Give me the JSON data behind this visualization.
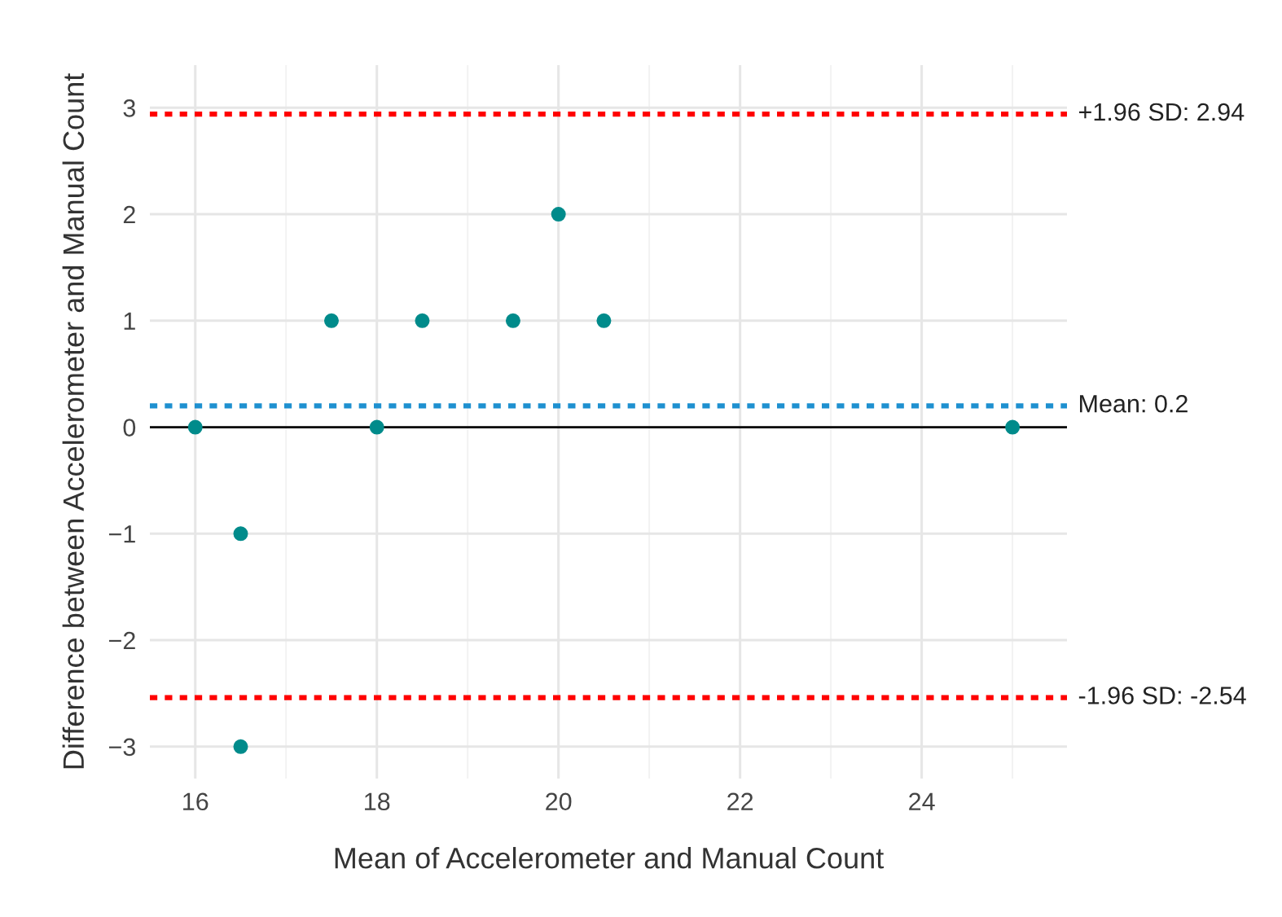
{
  "chart_data": {
    "type": "scatter",
    "xlabel": "Mean of Accelerometer and Manual Count",
    "ylabel": "Difference between Accelerometer and Manual Count",
    "x": [
      16,
      16.5,
      16.5,
      17.5,
      18,
      18.5,
      19.5,
      20,
      20.5,
      25
    ],
    "series": [
      {
        "color": "#008b8b",
        "values": [
          0,
          -1,
          -3,
          1,
          0,
          1,
          1,
          2,
          1,
          0
        ]
      }
    ],
    "marker": "circle",
    "xlim": [
      15.5,
      25.6
    ],
    "ylim": [
      -3.3,
      3.4
    ],
    "xticks": [
      16,
      18,
      20,
      22,
      24
    ],
    "yticks": [
      -3,
      -2,
      -1,
      0,
      1,
      2,
      3
    ],
    "grid": true,
    "ref_lines": [
      {
        "axis": "y",
        "value": 0,
        "label": null,
        "color": "#000000",
        "line_style": "solid"
      },
      {
        "axis": "y",
        "value": 2.94,
        "label": "+1.96 SD: 2.94",
        "color": "#ff0000",
        "line_style": "dotted"
      },
      {
        "axis": "y",
        "value": 0.2,
        "label": "Mean: 0.2",
        "color": "#1e90d0",
        "line_style": "dotted"
      },
      {
        "axis": "y",
        "value": -2.54,
        "label": "-1.96 SD: -2.54",
        "color": "#ff0000",
        "line_style": "dotted"
      }
    ]
  }
}
